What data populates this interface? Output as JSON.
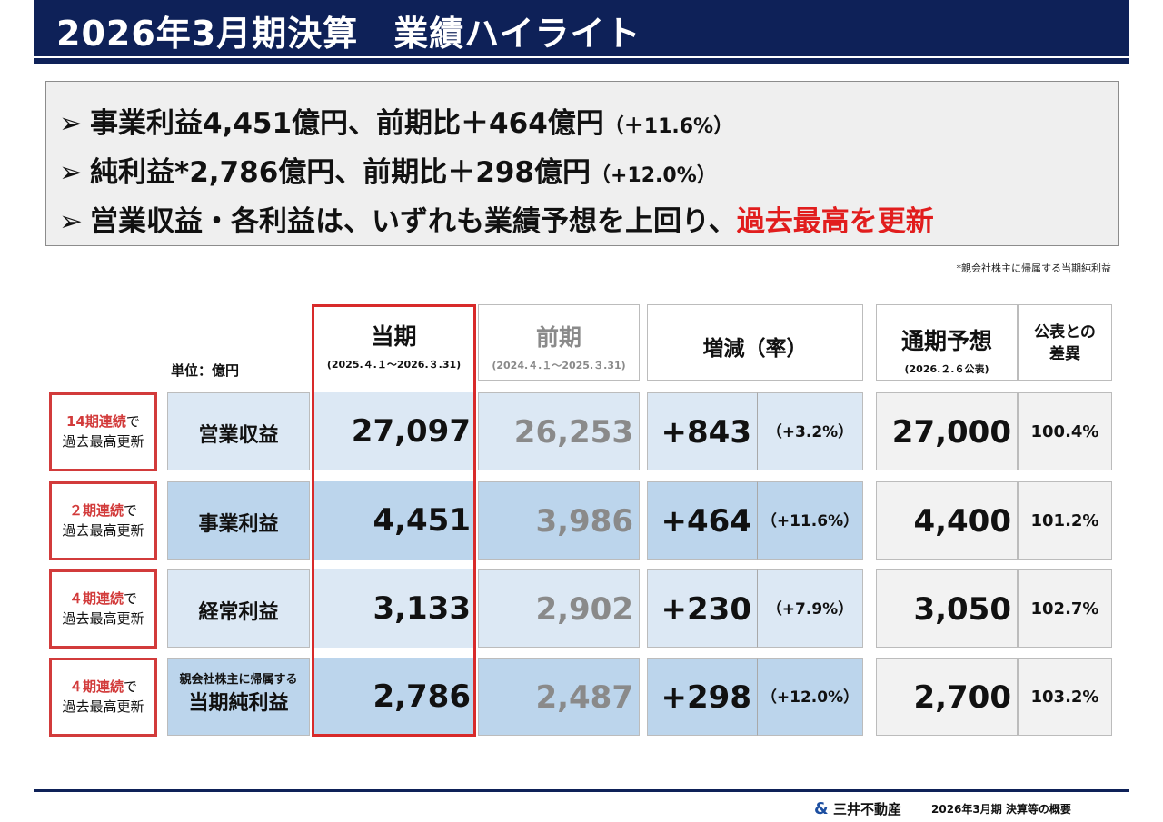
{
  "title": "2026年3月期決算　業績ハイライト",
  "highlights": [
    {
      "text": "事業利益4,451億円、前期比＋464億円",
      "note": "（＋11.6%）"
    },
    {
      "text": "純利益*2,786億円、前期比＋298億円",
      "note": "（+12.0%）"
    },
    {
      "text": "営業収益・各利益は、いずれも業績予想を上回り、",
      "red": "過去最高を更新"
    }
  ],
  "bullet": "➢",
  "footnote": "*親会社株主に帰属する当期純利益",
  "unit_label": "単位：億円",
  "headers": {
    "current": {
      "title": "当期",
      "period": "(2025.４.１～2026.３.31)"
    },
    "previous": {
      "title": "前期",
      "period": "(2024.４.１～2025.３.31)"
    },
    "change": {
      "title": "増減（率）"
    },
    "forecast": {
      "title": "通期予想",
      "date": "(2026.２.６公表)"
    },
    "diff": {
      "title": "公表との差異"
    }
  },
  "rows": [
    {
      "badge_red": "14期連続",
      "badge_suffix": "で",
      "badge_line2": "過去最高更新",
      "label": "営業収益",
      "current": "27,097",
      "previous": "26,253",
      "change": "+843",
      "rate": "（+3.2%）",
      "forecast": "27,000",
      "ratio": "100.4%"
    },
    {
      "badge_red": "２期連続",
      "badge_suffix": "で",
      "badge_line2": "過去最高更新",
      "label": "事業利益",
      "current": "4,451",
      "previous": "3,986",
      "change": "+464",
      "rate": "（+11.6%）",
      "forecast": "4,400",
      "ratio": "101.2%"
    },
    {
      "badge_red": "４期連続",
      "badge_suffix": "で",
      "badge_line2": "過去最高更新",
      "label": "経常利益",
      "current": "3,133",
      "previous": "2,902",
      "change": "+230",
      "rate": "（+7.9%）",
      "forecast": "3,050",
      "ratio": "102.7%"
    },
    {
      "badge_red": "４期連続",
      "badge_suffix": "で",
      "badge_line2": "過去最高更新",
      "label_small": "親会社株主に帰属する",
      "label": "当期純利益",
      "current": "2,786",
      "previous": "2,487",
      "change": "+298",
      "rate": "（+12.0%）",
      "forecast": "2,700",
      "ratio": "103.2%"
    }
  ],
  "footer": {
    "company": "三井不動産",
    "logo_mark": "&",
    "doc_title": "2026年3月期 決算等の概要"
  }
}
